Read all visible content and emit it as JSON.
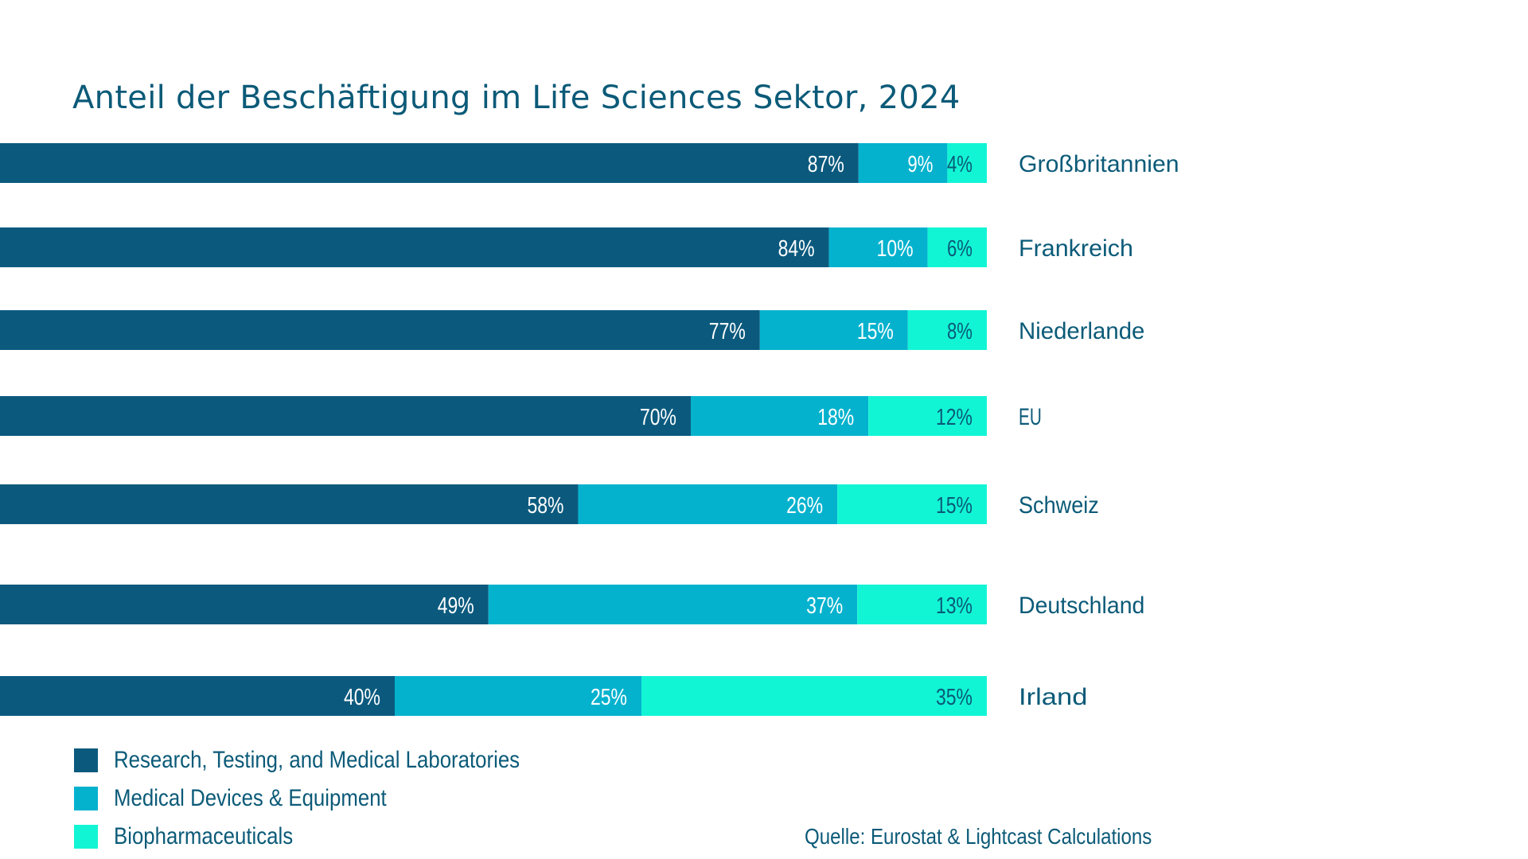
{
  "chart_data": {
    "type": "bar",
    "orientation": "horizontal",
    "stacked": true,
    "title": "Anteil der Beschäftigung im Life Sciences Sektor, 2024",
    "categories": [
      "Großbritannien",
      "Frankreich",
      "Niederlande",
      "EU",
      "Schweiz",
      "Deutschland",
      "Irland"
    ],
    "series": [
      {
        "name": "Research, Testing, and Medical Laboratories",
        "values": [
          87,
          84,
          77,
          70,
          58,
          49,
          40
        ],
        "color": "#0b5a7e"
      },
      {
        "name": "Medical Devices & Equipment",
        "values": [
          9,
          10,
          15,
          18,
          26,
          37,
          25
        ],
        "color": "#05b2ce"
      },
      {
        "name": "Biopharmaceuticals",
        "values": [
          4,
          6,
          8,
          12,
          15,
          13,
          35
        ],
        "color": "#12f5d5"
      }
    ],
    "value_suffix": "%",
    "legend_position": "bottom-left",
    "source": "Quelle: Eurostat & Lightcast Calculations"
  },
  "colors": {
    "text": "#0b5a78",
    "label_on_dark": "#ffffff",
    "label_on_light": "#0b5a78"
  }
}
